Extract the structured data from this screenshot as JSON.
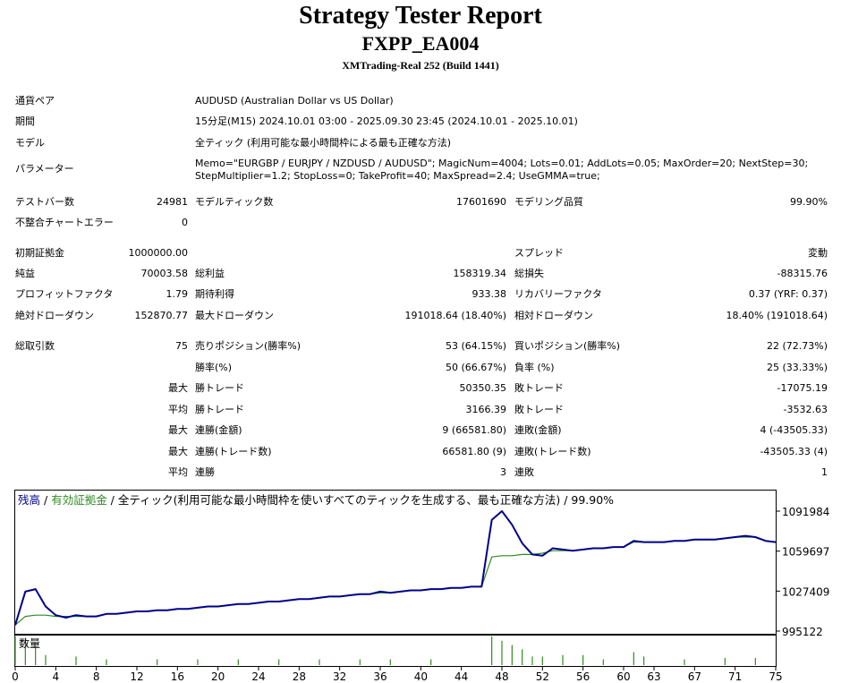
{
  "report": {
    "title": "Strategy Tester Report",
    "ea_name": "FXPP_EA004",
    "server": "XMTrading-Real 252 (Build 1441)"
  },
  "settings": {
    "symbol_label": "通貨ペア",
    "symbol_value": "AUDUSD (Australian Dollar vs US Dollar)",
    "period_label": "期間",
    "period_value": "15分足(M15) 2024.10.01 03:00 - 2025.09.30 23:45 (2024.10.01 - 2025.10.01)",
    "model_label": "モデル",
    "model_value": "全ティック (利用可能な最小時間枠による最も正確な方法)",
    "params_label": "パラメーター",
    "params_line1": "Memo=\"EURGBP / EURJPY / NZDUSD / AUDUSD\"; MagicNum=4004; Lots=0.01; AddLots=0.05; MaxOrder=20; NextStep=30;",
    "params_line2": "StepMultiplier=1.2; StopLoss=0; TakeProfit=40; MaxSpread=2.4; UseGMMA=true;"
  },
  "test": {
    "bars_label": "テストバー数",
    "bars_value": "24981",
    "ticks_label": "モデルティック数",
    "ticks_value": "17601690",
    "quality_label": "モデリング品質",
    "quality_value": "99.90%",
    "errors_label": "不整合チャートエラー",
    "errors_value": "0"
  },
  "results": {
    "deposit_label": "初期証拠金",
    "deposit_value": "1000000.00",
    "spread_label": "スプレッド",
    "spread_value": "変動",
    "net_label": "純益",
    "net_value": "70003.58",
    "gross_profit_label": "総利益",
    "gross_profit_value": "158319.34",
    "gross_loss_label": "総損失",
    "gross_loss_value": "-88315.76",
    "pf_label": "プロフィットファクタ",
    "pf_value": "1.79",
    "expected_label": "期待利得",
    "expected_value": "933.38",
    "recovery_label": "リカバリーファクタ",
    "recovery_value": "0.37 (YRF: 0.37)",
    "abs_dd_label": "絶対ドローダウン",
    "abs_dd_value": "152870.77",
    "max_dd_label": "最大ドローダウン",
    "max_dd_value": "191018.64 (18.40%)",
    "rel_dd_label": "相対ドローダウン",
    "rel_dd_value": "18.40% (191018.64)"
  },
  "trades": {
    "total_label": "総取引数",
    "total_value": "75",
    "short_label": "売りポジション(勝率%)",
    "short_value": "53 (64.15%)",
    "long_label": "買いポジション(勝率%)",
    "long_value": "22 (72.73%)",
    "winrate_label": "勝率(%)",
    "winrate_value": "50 (66.67%)",
    "lossrate_label": "負率 (%)",
    "lossrate_value": "25 (33.33%)",
    "max_label": "最大",
    "avg_label": "平均",
    "best_label": "勝トレード",
    "best_value": "50350.35",
    "worst_label": "敗トレード",
    "worst_value": "-17075.19",
    "avg_win_label": "勝トレード",
    "avg_win_value": "3166.39",
    "avg_loss_label": "敗トレード",
    "avg_loss_value": "-3532.63",
    "max_cons_wins_amt_label": "連勝(金額)",
    "max_cons_wins_amt_value": "9 (66581.80)",
    "max_cons_losses_amt_label": "連敗(金額)",
    "max_cons_losses_amt_value": "4 (-43505.33)",
    "max_cons_profit_label": "連勝(トレード数)",
    "max_cons_profit_value": "66581.80 (9)",
    "max_cons_loss_label": "連敗(トレード数)",
    "max_cons_loss_value": "-43505.33 (4)",
    "avg_cons_wins_label": "連勝",
    "avg_cons_wins_value": "3",
    "avg_cons_losses_label": "連敗",
    "avg_cons_losses_value": "1"
  },
  "chart_header": {
    "balance": "残高",
    "sep1": " / ",
    "equity": "有効証拠金",
    "rest": " / 全ティック(利用可能な最小時間枠を使いすべてのティックを生成する、最も正確な方法) / 99.90%",
    "balance_color": "#00008b",
    "equity_color": "#2e8b22"
  },
  "chart_data": {
    "type": "line",
    "ylim": [
      995122,
      1091984
    ],
    "yticks": [
      "1091984",
      "1059697",
      "1027409",
      "995122"
    ],
    "xticks": [
      "0",
      "4",
      "8",
      "12",
      "16",
      "20",
      "24",
      "28",
      "32",
      "36",
      "40",
      "44",
      "48",
      "52",
      "56",
      "60",
      "63",
      "67",
      "71",
      "75"
    ],
    "xmax": 75,
    "series": [
      {
        "name": "残高",
        "color": "#00008b",
        "x": [
          0,
          1,
          2,
          3,
          4,
          5,
          6,
          7,
          8,
          9,
          10,
          11,
          12,
          13,
          14,
          15,
          16,
          17,
          18,
          19,
          20,
          21,
          22,
          23,
          24,
          25,
          26,
          27,
          28,
          29,
          30,
          31,
          32,
          33,
          34,
          35,
          36,
          37,
          38,
          39,
          40,
          41,
          42,
          43,
          44,
          45,
          46,
          47,
          48,
          49,
          50,
          51,
          52,
          53,
          54,
          55,
          56,
          57,
          58,
          59,
          60,
          61,
          62,
          63,
          64,
          65,
          66,
          67,
          68,
          69,
          70,
          71,
          72,
          73,
          74,
          75
        ],
        "values": [
          1000000,
          1027000,
          1029000,
          1015000,
          1008000,
          1006000,
          1008000,
          1007000,
          1007000,
          1009000,
          1009000,
          1010000,
          1011000,
          1011000,
          1012000,
          1012000,
          1013000,
          1013000,
          1014000,
          1015000,
          1015000,
          1016000,
          1017000,
          1017000,
          1018000,
          1019000,
          1019000,
          1020000,
          1021000,
          1021000,
          1022000,
          1023000,
          1023000,
          1024000,
          1025000,
          1025000,
          1027000,
          1026000,
          1027000,
          1028000,
          1028000,
          1029000,
          1029000,
          1030000,
          1030000,
          1031000,
          1031000,
          1085000,
          1092000,
          1081000,
          1066000,
          1057000,
          1056000,
          1062000,
          1061000,
          1060000,
          1061000,
          1062000,
          1062000,
          1063000,
          1063000,
          1068000,
          1067000,
          1067000,
          1067000,
          1068000,
          1068000,
          1069000,
          1069000,
          1069000,
          1070000,
          1071000,
          1072000,
          1071000,
          1068000,
          1067000
        ]
      },
      {
        "name": "有効証拠金",
        "color": "#2e8b22",
        "x": [
          0,
          1,
          2,
          3,
          4,
          5,
          6,
          7,
          8,
          9,
          10,
          11,
          12,
          13,
          14,
          15,
          16,
          17,
          18,
          19,
          20,
          21,
          22,
          23,
          24,
          25,
          26,
          27,
          28,
          29,
          30,
          31,
          32,
          33,
          34,
          35,
          36,
          37,
          38,
          39,
          40,
          41,
          42,
          43,
          44,
          45,
          46,
          47,
          48,
          49,
          50,
          51,
          52,
          53,
          54,
          55,
          56,
          57,
          58,
          59,
          60,
          61,
          62,
          63,
          64,
          65,
          66,
          67,
          68,
          69,
          70,
          71,
          72,
          73,
          74,
          75
        ],
        "values": [
          1000000,
          1007000,
          1008000,
          1008000,
          1007000,
          1007000,
          1007000,
          1007000,
          1007000,
          1009000,
          1009000,
          1010000,
          1011000,
          1011000,
          1012000,
          1012000,
          1013000,
          1013000,
          1014000,
          1015000,
          1015000,
          1016000,
          1017000,
          1017000,
          1018000,
          1019000,
          1019000,
          1020000,
          1021000,
          1021000,
          1022000,
          1023000,
          1023000,
          1024000,
          1025000,
          1025000,
          1026000,
          1026000,
          1027000,
          1028000,
          1028000,
          1029000,
          1029000,
          1030000,
          1030000,
          1031000,
          1031000,
          1055000,
          1056000,
          1056000,
          1057000,
          1057000,
          1058000,
          1060000,
          1060000,
          1060000,
          1061000,
          1062000,
          1062000,
          1063000,
          1063000,
          1067000,
          1067000,
          1067000,
          1067000,
          1068000,
          1068000,
          1069000,
          1069000,
          1069000,
          1070000,
          1071000,
          1071000,
          1071000,
          1068000,
          1067000
        ]
      }
    ],
    "volume": {
      "name": "数量",
      "bars": [
        [
          0,
          1.0
        ],
        [
          1,
          0.95
        ],
        [
          2,
          0.6
        ],
        [
          3,
          0.35
        ],
        [
          6,
          0.3
        ],
        [
          9,
          0.2
        ],
        [
          14,
          0.2
        ],
        [
          18,
          0.2
        ],
        [
          22,
          0.2
        ],
        [
          26,
          0.2
        ],
        [
          30,
          0.2
        ],
        [
          34,
          0.2
        ],
        [
          37,
          0.2
        ],
        [
          41,
          0.2
        ],
        [
          47,
          1.0
        ],
        [
          48,
          0.85
        ],
        [
          49,
          0.7
        ],
        [
          50,
          0.55
        ],
        [
          51,
          0.3
        ],
        [
          52,
          0.3
        ],
        [
          54,
          0.35
        ],
        [
          56,
          0.35
        ],
        [
          58,
          0.2
        ],
        [
          61,
          0.45
        ],
        [
          62,
          0.3
        ],
        [
          66,
          0.2
        ],
        [
          70,
          0.25
        ],
        [
          73,
          0.25
        ]
      ]
    }
  }
}
